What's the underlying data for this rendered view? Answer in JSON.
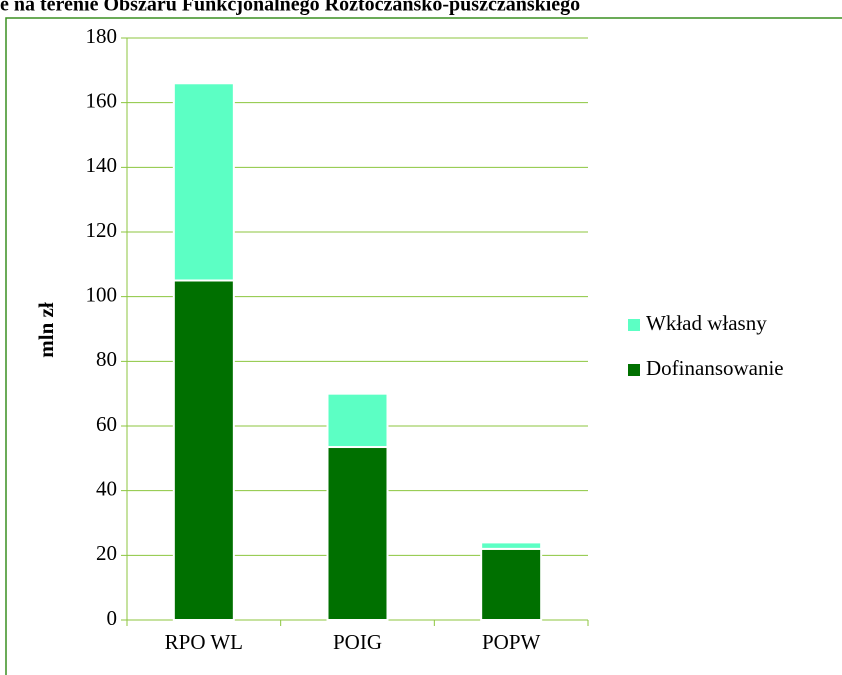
{
  "chart_data": {
    "type": "stacked_bar",
    "title": "e na terenie Obszaru Funkcjonalnego Roztoczańsko-puszczańskiego",
    "y_label": "mln zł",
    "categories": [
      "RPO WL",
      "POIG",
      "POPW"
    ],
    "series": [
      {
        "name": "Dofinansowanie",
        "color": "#007000",
        "values": [
          105,
          53.5,
          22
        ]
      },
      {
        "name": "Wkład własny",
        "color": "#5cffc4",
        "values": [
          61,
          16.5,
          2
        ]
      }
    ],
    "ylim": [
      0,
      180
    ],
    "yticks": [
      0,
      20,
      40,
      60,
      80,
      100,
      120,
      140,
      160,
      180
    ],
    "grid": true,
    "legend": "right"
  }
}
